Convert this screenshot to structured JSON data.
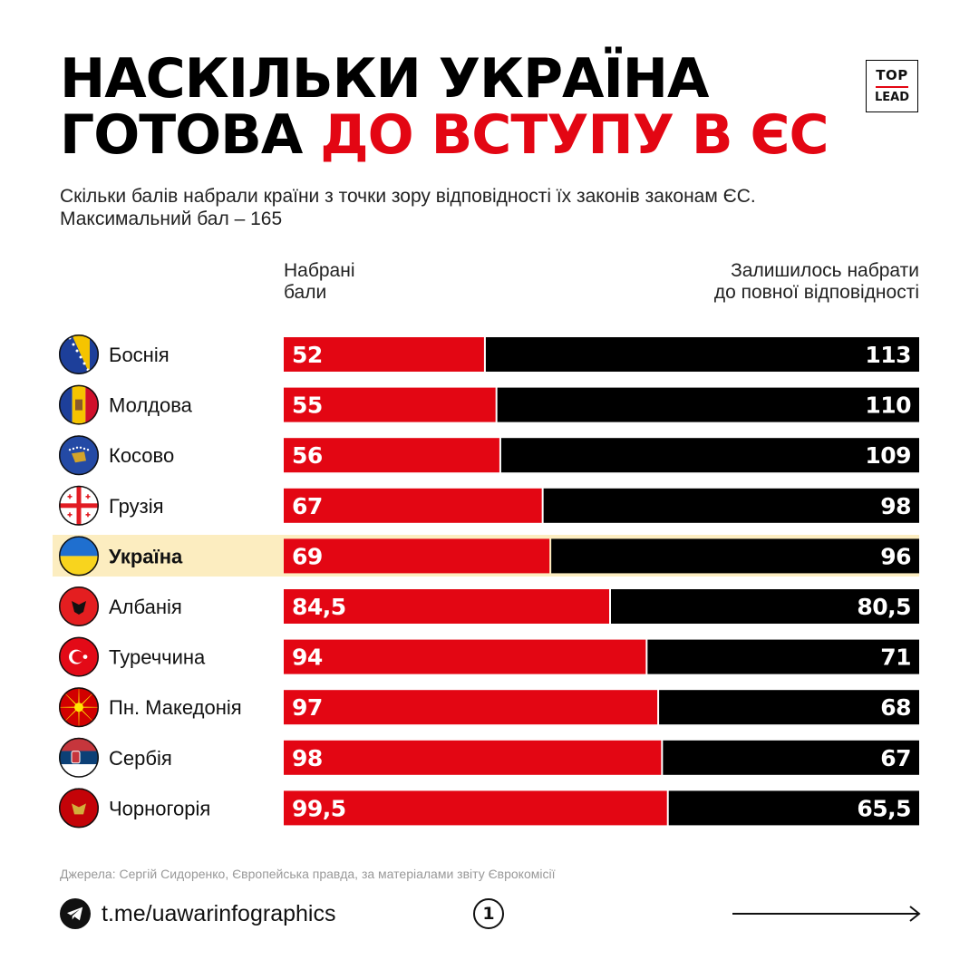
{
  "title": {
    "line1": "НАСКІЛЬКИ УКРАЇНА",
    "line2_prefix": "ГОТОВА ",
    "line2_accent": "ДО ВСТУПУ В ЄС"
  },
  "logo": {
    "top": "TOP",
    "bottom": "LEAD"
  },
  "subtitle": {
    "line1": "Скільки балів набрали країни з точки зору відповідності їх законів законам ЄС.",
    "line2": "Максимальний бал – 165"
  },
  "chart_data": {
    "type": "bar",
    "stacked": true,
    "orientation": "horizontal",
    "max_score": 165,
    "series": [
      {
        "name": "Набрані бали",
        "color": "#e30613"
      },
      {
        "name": "Залишилось набрати до повної відповідності",
        "color": "#000000"
      }
    ],
    "rows": [
      {
        "country": "Боснія",
        "scored": 52,
        "scored_label": "52",
        "remaining": 113,
        "remaining_label": "113",
        "flag": "bosnia-flag-icon"
      },
      {
        "country": "Молдова",
        "scored": 55,
        "scored_label": "55",
        "remaining": 110,
        "remaining_label": "110",
        "flag": "moldova-flag-icon"
      },
      {
        "country": "Косово",
        "scored": 56,
        "scored_label": "56",
        "remaining": 109,
        "remaining_label": "109",
        "flag": "kosovo-flag-icon"
      },
      {
        "country": "Грузія",
        "scored": 67,
        "scored_label": "67",
        "remaining": 98,
        "remaining_label": "98",
        "flag": "georgia-flag-icon"
      },
      {
        "country": "Україна",
        "scored": 69,
        "scored_label": "69",
        "remaining": 96,
        "remaining_label": "96",
        "flag": "ukraine-flag-icon",
        "highlight": true
      },
      {
        "country": "Албанія",
        "scored": 84.5,
        "scored_label": "84,5",
        "remaining": 80.5,
        "remaining_label": "80,5",
        "flag": "albania-flag-icon"
      },
      {
        "country": "Туреччина",
        "scored": 94,
        "scored_label": "94",
        "remaining": 71,
        "remaining_label": "71",
        "flag": "turkey-flag-icon"
      },
      {
        "country": "Пн. Македонія",
        "scored": 97,
        "scored_label": "97",
        "remaining": 68,
        "remaining_label": "68",
        "flag": "north-macedonia-flag-icon"
      },
      {
        "country": "Сербія",
        "scored": 98,
        "scored_label": "98",
        "remaining": 67,
        "remaining_label": "67",
        "flag": "serbia-flag-icon"
      },
      {
        "country": "Чорногорія",
        "scored": 99.5,
        "scored_label": "99,5",
        "remaining": 65.5,
        "remaining_label": "65,5",
        "flag": "montenegro-flag-icon"
      }
    ]
  },
  "columns": {
    "left_line1": "Набрані",
    "left_line2": "бали",
    "right_line1": "Залишилось набрати",
    "right_line2": "до повної відповідності"
  },
  "highlight_color": "#fcedc0",
  "source": "Джерела: Сергій Сидоренко, Європейська правда, за матеріалами звіту Єврокомісії",
  "footer": {
    "link": "t.me/uawarinfographics",
    "page_number": "1",
    "link_icon": "telegram-icon",
    "next_icon": "arrow-right-icon"
  }
}
